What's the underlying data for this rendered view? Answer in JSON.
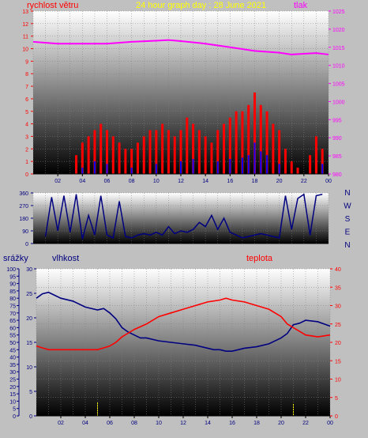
{
  "header": {
    "title": "24 hour graph day : 28 June 2021",
    "wind_label": "rychlost větru",
    "pressure_label": "tlak"
  },
  "colors": {
    "background": "#c0c0c0",
    "wind_speed": "#ff0000",
    "wind_gust": "#ff0000",
    "wind_avg": "#0000ff",
    "pressure": "#ff00ff",
    "direction": "#000080",
    "humidity": "#000080",
    "temperature": "#ff0000",
    "rain": "#ffff00",
    "title": "#ffff00"
  },
  "chart_data": [
    {
      "type": "line",
      "title": "24 hour graph day : 28 June 2021",
      "x_ticks": [
        "02",
        "04",
        "06",
        "08",
        "10",
        "12",
        "14",
        "16",
        "18",
        "20",
        "22",
        "00"
      ],
      "left_axis": {
        "label": "rychlost větru",
        "ylim": [
          0,
          13
        ],
        "ticks": [
          "0",
          "1",
          "2",
          "3",
          "4",
          "5",
          "6",
          "7",
          "8",
          "9",
          "10",
          "11",
          "12",
          "13"
        ]
      },
      "right_axis": {
        "label": "tlak",
        "ylim": [
          980,
          1025
        ],
        "ticks": [
          "980",
          "985",
          "990",
          "995",
          "1000",
          "1005",
          "1010",
          "1015",
          "1020",
          "1025"
        ]
      },
      "series": [
        {
          "name": "tlak",
          "axis": "right",
          "x": [
            0,
            2,
            4,
            6,
            8,
            10,
            11,
            12,
            14,
            16,
            18,
            20,
            21,
            22,
            23,
            24
          ],
          "y": [
            1016.5,
            1016,
            1016,
            1016,
            1016.5,
            1016.8,
            1017,
            1016.7,
            1016,
            1015,
            1014,
            1013.5,
            1013,
            1013.2,
            1013.4,
            1013
          ]
        },
        {
          "name": "wind_speed",
          "axis": "left",
          "style": "bars",
          "x": [
            3.5,
            4.0,
            4.5,
            5.0,
            5.5,
            6.0,
            6.5,
            7.0,
            7.5,
            8.0,
            8.5,
            9.0,
            9.5,
            10.0,
            10.5,
            11.0,
            11.5,
            12.0,
            12.5,
            13.0,
            13.5,
            14.0,
            14.5,
            15.0,
            15.5,
            16.0,
            16.5,
            17.0,
            17.5,
            18.0,
            18.5,
            19.0,
            19.5,
            20.0,
            20.5,
            21.0,
            21.5,
            22.0,
            22.5,
            23.0,
            23.5
          ],
          "y": [
            1.5,
            2.5,
            3.0,
            3.5,
            4.0,
            3.5,
            3.0,
            2.5,
            2.0,
            2.0,
            2.5,
            3.0,
            3.5,
            3.5,
            4.0,
            3.5,
            3.0,
            3.5,
            4.5,
            4.0,
            3.5,
            3.0,
            2.5,
            3.5,
            4.0,
            4.5,
            5.0,
            5.0,
            5.5,
            6.5,
            5.5,
            5.0,
            4.0,
            3.5,
            2.0,
            1.0,
            0.5,
            0.0,
            1.5,
            3.0,
            2.0
          ]
        },
        {
          "name": "wind_avg",
          "axis": "left",
          "style": "bars",
          "x": [
            4.0,
            5.0,
            6.0,
            8.0,
            10.0,
            12.0,
            13.0,
            15.0,
            16.0,
            17.0,
            17.5,
            18.0,
            18.5,
            19.0,
            20.0,
            23.5
          ],
          "y": [
            0.5,
            1.0,
            0.8,
            0.5,
            0.8,
            1.0,
            1.2,
            1.0,
            1.2,
            1.3,
            1.5,
            2.5,
            1.8,
            1.5,
            0.8,
            0.8
          ]
        }
      ]
    },
    {
      "type": "line",
      "x_ticks": [
        "02",
        "04",
        "06",
        "08",
        "10",
        "12",
        "14",
        "16",
        "18",
        "20",
        "22",
        "00"
      ],
      "left_axis": {
        "ylim": [
          0,
          360
        ],
        "ticks": [
          "0",
          "90",
          "180",
          "270",
          "360"
        ]
      },
      "direction_labels": [
        "N",
        "W",
        "S",
        "E",
        "N"
      ],
      "series": [
        {
          "name": "wind_direction",
          "x": [
            1.0,
            1.5,
            2.0,
            2.5,
            3.0,
            3.5,
            4.0,
            4.5,
            5.0,
            5.5,
            6.0,
            6.5,
            7.0,
            7.5,
            8.0,
            8.5,
            9.0,
            9.5,
            10.0,
            10.5,
            11.0,
            11.5,
            12.0,
            12.5,
            13.0,
            13.5,
            14.0,
            14.5,
            15.0,
            15.5,
            16.0,
            16.5,
            17.0,
            17.5,
            18.0,
            18.5,
            19.0,
            19.5,
            20.0,
            20.5,
            21.0,
            21.5,
            22.0,
            22.5,
            23.0,
            23.5
          ],
          "y": [
            50,
            330,
            90,
            340,
            80,
            350,
            30,
            200,
            60,
            340,
            60,
            40,
            300,
            50,
            40,
            60,
            70,
            60,
            80,
            60,
            120,
            70,
            90,
            80,
            100,
            150,
            120,
            200,
            100,
            180,
            80,
            60,
            40,
            50,
            60,
            70,
            60,
            50,
            40,
            340,
            100,
            320,
            350,
            60,
            340,
            350
          ]
        }
      ]
    },
    {
      "type": "line",
      "x_ticks": [
        "02",
        "04",
        "06",
        "08",
        "10",
        "12",
        "14",
        "16",
        "18",
        "20",
        "22",
        "00"
      ],
      "labels": {
        "rain": "srážky",
        "humidity": "vlhkost",
        "temperature": "teplota"
      },
      "rain_axis": {
        "ylim": [
          0,
          100
        ],
        "ticks": [
          "0",
          "5",
          "10",
          "15",
          "20",
          "25",
          "30",
          "35",
          "40",
          "45",
          "50",
          "55",
          "60",
          "65",
          "70",
          "75",
          "80",
          "85",
          "90",
          "95",
          "100"
        ]
      },
      "humidity_axis": {
        "ylim": [
          0,
          30
        ],
        "ticks": [
          "0",
          "5",
          "10",
          "15",
          "20",
          "25",
          "30"
        ]
      },
      "temperature_axis": {
        "ylim": [
          0,
          40
        ],
        "ticks": [
          "0",
          "5",
          "10",
          "15",
          "20",
          "25",
          "30",
          "35",
          "40"
        ]
      },
      "series": [
        {
          "name": "vlhkost",
          "axis": "rain_axis",
          "x": [
            0.0,
            0.5,
            1.0,
            1.5,
            2.0,
            3.0,
            4.0,
            5.0,
            5.5,
            6.0,
            6.5,
            7.0,
            7.5,
            8.0,
            8.5,
            9.0,
            10.0,
            11.0,
            12.0,
            13.0,
            14.0,
            14.5,
            15.0,
            15.5,
            16.0,
            17.0,
            18.0,
            19.0,
            20.0,
            20.5,
            21.0,
            21.5,
            22.0,
            23.0,
            24.0
          ],
          "y": [
            80,
            83,
            84,
            82,
            80,
            78,
            74,
            72,
            73,
            70,
            66,
            60,
            57,
            55,
            53,
            53,
            51,
            50,
            49,
            48,
            46,
            45,
            45,
            44,
            44,
            46,
            47,
            49,
            53,
            56,
            62,
            63,
            65,
            64,
            61
          ]
        },
        {
          "name": "teplota",
          "axis": "temperature_axis",
          "x": [
            0.0,
            0.5,
            1.0,
            2.0,
            3.0,
            4.0,
            5.0,
            5.5,
            6.0,
            6.5,
            7.0,
            7.5,
            8.0,
            9.0,
            10.0,
            11.0,
            12.0,
            13.0,
            14.0,
            15.0,
            15.5,
            16.0,
            17.0,
            18.0,
            19.0,
            20.0,
            20.5,
            21.0,
            21.5,
            22.0,
            23.0,
            24.0
          ],
          "y": [
            19,
            18.5,
            18,
            18,
            18,
            18,
            18,
            18.5,
            19,
            20,
            21.5,
            22.5,
            23.5,
            25,
            27,
            28,
            29,
            30,
            31,
            31.5,
            32,
            31.5,
            31,
            30,
            29,
            27,
            25,
            24,
            23,
            22,
            21.5,
            22
          ]
        },
        {
          "name": "srážky",
          "axis": "rain_axis",
          "style": "bars",
          "x": [
            5.0,
            21.0
          ],
          "y": [
            9,
            8
          ]
        }
      ]
    }
  ]
}
